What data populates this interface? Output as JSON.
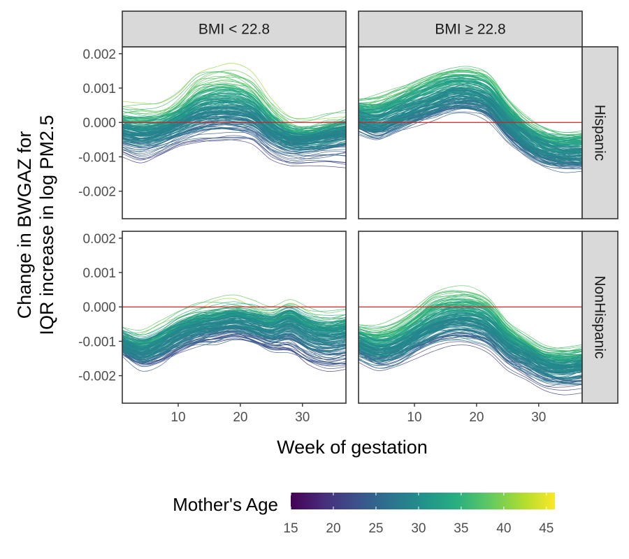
{
  "chart_data": {
    "type": "line",
    "x": [
      1,
      4,
      7,
      10,
      13,
      16,
      19,
      22,
      25,
      28,
      31,
      34,
      37
    ],
    "xlabel": "Week of gestation",
    "ylabel_lines": [
      "Change in BWGAZ for",
      "IQR increase in log PM2.5"
    ],
    "xlim": [
      1,
      37
    ],
    "ylim": [
      -0.0028,
      0.0022
    ],
    "xticks": [
      10,
      20,
      30
    ],
    "yticks": [
      -0.002,
      -0.001,
      0.0,
      0.001,
      0.002
    ],
    "ytick_labels": [
      "-0.002",
      "-0.001",
      "0.000",
      "0.001",
      "0.002"
    ],
    "reference_line": 0.0,
    "reference_color": "#cc2222",
    "column_facets": [
      "BMI < 22.8",
      "BMI ≥ 22.8"
    ],
    "row_facets": [
      "Hispanic",
      "NonHispanic"
    ],
    "legend": {
      "title": "Mother's Age",
      "position": "bottom",
      "range": [
        15,
        46
      ],
      "ticks": [
        15,
        20,
        25,
        30,
        35,
        40,
        45
      ],
      "colormap": "viridis"
    },
    "panels": [
      {
        "column": "BMI < 22.8",
        "row": "Hispanic",
        "mean_curve": [
          -0.0004,
          -0.0005,
          -0.0004,
          -0.0002,
          0.0,
          0.0001,
          0.0001,
          0.0,
          -0.0004,
          -0.0006,
          -0.0006,
          -0.0005,
          -0.0004
        ],
        "series_summary": [
          {
            "age": 16,
            "values": [
              -0.0012,
              -0.0014,
              -0.0012,
              -0.001,
              -0.0009,
              -0.0008,
              -0.0008,
              -0.0009,
              -0.0013,
              -0.0015,
              -0.0016,
              -0.0017,
              -0.0018
            ]
          },
          {
            "age": 27,
            "values": [
              -0.0004,
              -0.0005,
              -0.0004,
              -0.0002,
              0.0,
              0.0001,
              0.0001,
              0.0,
              -0.0004,
              -0.0006,
              -0.0006,
              -0.0005,
              -0.0004
            ]
          },
          {
            "age": 40,
            "values": [
              0.0004,
              0.0004,
              0.0004,
              0.0007,
              0.0013,
              0.0015,
              0.0015,
              0.0012,
              0.0005,
              0.0,
              -0.0001,
              0.0,
              0.0001
            ]
          }
        ]
      },
      {
        "column": "BMI ≥ 22.8",
        "row": "Hispanic",
        "mean_curve": [
          0.0001,
          0.0,
          0.0002,
          0.0004,
          0.0006,
          0.0008,
          0.0008,
          0.0006,
          0.0,
          -0.0005,
          -0.0008,
          -0.0009,
          -0.0009
        ],
        "series_summary": [
          {
            "age": 16,
            "values": [
              -0.0004,
              -0.0007,
              -0.0005,
              -0.0003,
              -0.0001,
              0.0,
              0.0,
              -0.0002,
              -0.0008,
              -0.0012,
              -0.0015,
              -0.0016,
              -0.0016
            ]
          },
          {
            "age": 30,
            "values": [
              0.0001,
              0.0,
              0.0002,
              0.0004,
              0.0006,
              0.0008,
              0.0008,
              0.0006,
              0.0,
              -0.0005,
              -0.0008,
              -0.0009,
              -0.0009
            ]
          },
          {
            "age": 42,
            "values": [
              0.0009,
              0.0011,
              0.0013,
              0.0016,
              0.0019,
              0.002,
              0.002,
              0.0018,
              0.001,
              0.0004,
              0.0001,
              0.0,
              0.0001
            ]
          }
        ]
      },
      {
        "column": "BMI < 22.8",
        "row": "NonHispanic",
        "mean_curve": [
          -0.001,
          -0.0012,
          -0.001,
          -0.0007,
          -0.0005,
          -0.0004,
          -0.0003,
          -0.0004,
          -0.0005,
          -0.0003,
          -0.0006,
          -0.0007,
          -0.0006
        ],
        "series_summary": [
          {
            "age": 17,
            "values": [
              -0.0015,
              -0.0019,
              -0.0018,
              -0.0015,
              -0.0013,
              -0.0012,
              -0.0011,
              -0.0013,
              -0.0016,
              -0.0017,
              -0.002,
              -0.0022,
              -0.0022
            ]
          },
          {
            "age": 31,
            "values": [
              -0.001,
              -0.0012,
              -0.001,
              -0.0007,
              -0.0005,
              -0.0004,
              -0.0003,
              -0.0004,
              -0.0005,
              -0.0003,
              -0.0006,
              -0.0007,
              -0.0006
            ]
          },
          {
            "age": 44,
            "values": [
              -0.0008,
              -0.0008,
              -0.0006,
              -0.0003,
              0.0,
              0.0002,
              0.0002,
              0.0001,
              -0.0001,
              0.0,
              -0.0002,
              -0.0003,
              -0.0002
            ]
          }
        ]
      },
      {
        "column": "BMI ≥ 22.8",
        "row": "NonHispanic",
        "mean_curve": [
          -0.0011,
          -0.0013,
          -0.0012,
          -0.0009,
          -0.0006,
          -0.0004,
          -0.0004,
          -0.0006,
          -0.0011,
          -0.0014,
          -0.0017,
          -0.0018,
          -0.0017
        ],
        "series_summary": [
          {
            "age": 16,
            "values": [
              -0.0016,
              -0.0019,
              -0.0018,
              -0.0016,
              -0.0014,
              -0.0013,
              -0.0013,
              -0.0015,
              -0.002,
              -0.0023,
              -0.0026,
              -0.0027,
              -0.0027
            ]
          },
          {
            "age": 30,
            "values": [
              -0.0011,
              -0.0013,
              -0.0012,
              -0.0009,
              -0.0006,
              -0.0004,
              -0.0004,
              -0.0006,
              -0.0011,
              -0.0014,
              -0.0017,
              -0.0018,
              -0.0017
            ]
          },
          {
            "age": 42,
            "values": [
              -0.0003,
              -0.0003,
              -0.0001,
              0.0003,
              0.0008,
              0.0009,
              0.0009,
              0.0006,
              -0.0002,
              -0.0007,
              -0.001,
              -0.001,
              -0.001
            ]
          }
        ]
      }
    ]
  }
}
